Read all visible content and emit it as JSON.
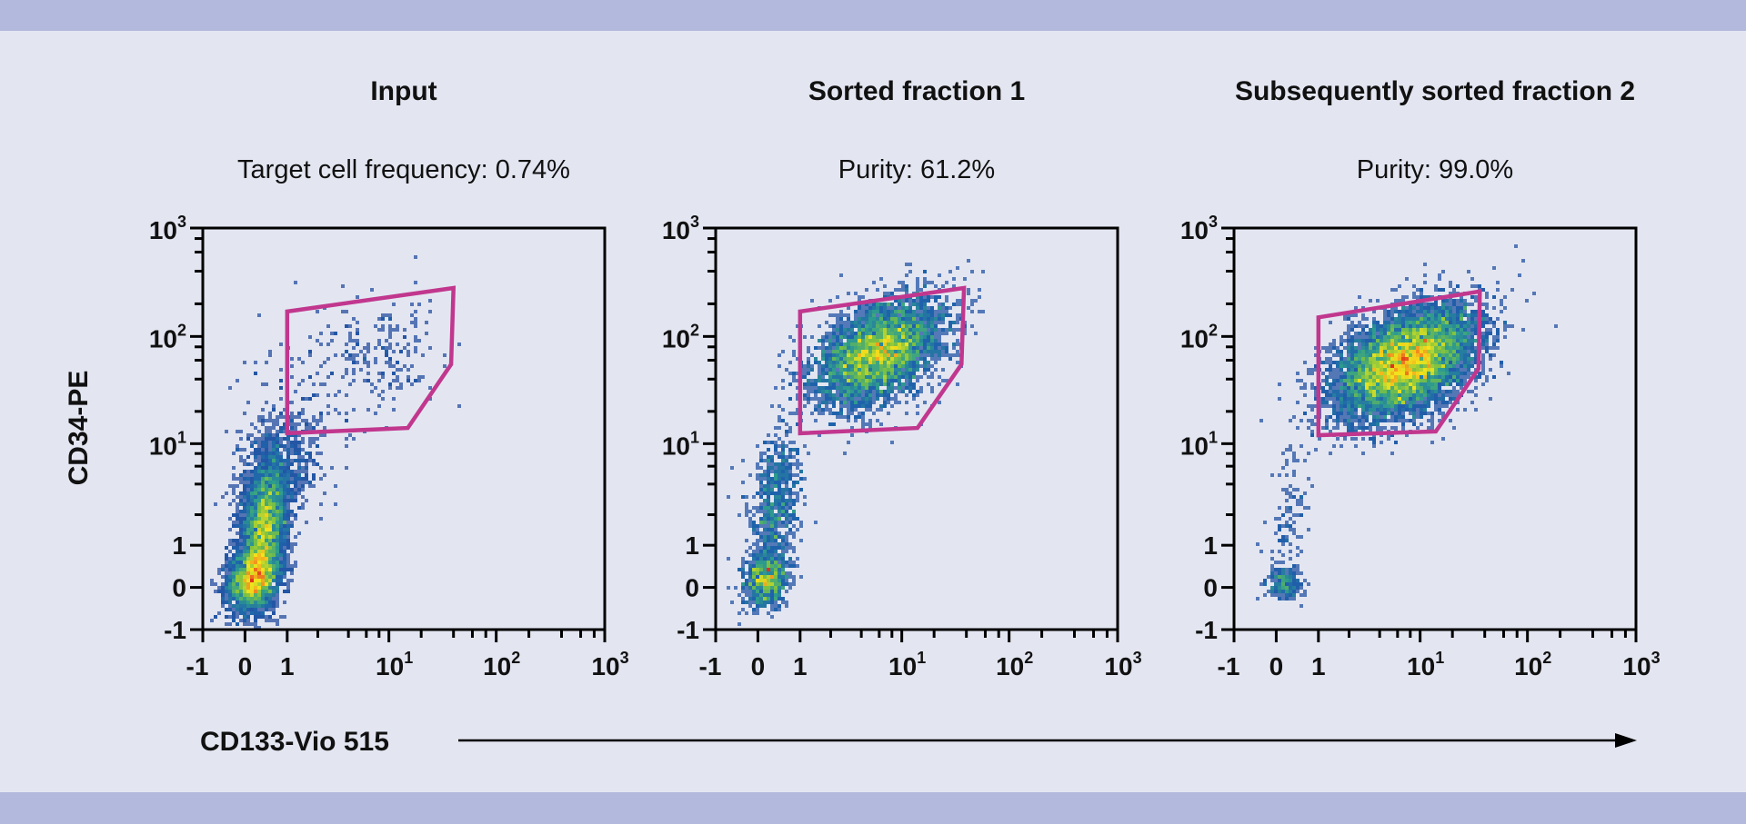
{
  "x_axis_label": "CD133-Vio 515",
  "y_axis_label": "CD34-PE",
  "colors": {
    "background": "#e3e6f1",
    "band": "#b2b9dc",
    "gate": "#c1378e",
    "axis": "#000000",
    "density_scale": [
      "#2a3f97",
      "#1f63ad",
      "#2f9e8c",
      "#7cc142",
      "#f2e51c",
      "#f39a1e",
      "#e0301e"
    ]
  },
  "chart_data": [
    {
      "type": "heatmap",
      "title": "Input",
      "subtitle": "Target cell frequency: 0.74%",
      "xlabel": "CD133-Vio 515",
      "ylabel": "CD34-PE",
      "scale": "biexponential",
      "xlim": [
        -1,
        1000
      ],
      "ylim": [
        -1,
        1000
      ],
      "x_ticks": [
        {
          "text": "-1",
          "sup": ""
        },
        {
          "text": "0",
          "sup": ""
        },
        {
          "text": "1",
          "sup": ""
        },
        {
          "text": "10",
          "sup": "1"
        },
        {
          "text": "10",
          "sup": "2"
        },
        {
          "text": "10",
          "sup": "3"
        }
      ],
      "y_ticks": [
        {
          "text": "-1",
          "sup": ""
        },
        {
          "text": "0",
          "sup": ""
        },
        {
          "text": "1",
          "sup": ""
        },
        {
          "text": "10",
          "sup": "1"
        },
        {
          "text": "10",
          "sup": "2"
        },
        {
          "text": "10",
          "sup": "3"
        }
      ],
      "gate": [
        [
          1,
          170
        ],
        [
          40,
          280
        ],
        [
          38,
          55
        ],
        [
          15,
          14
        ],
        [
          1,
          12.5
        ]
      ],
      "populations": [
        {
          "x": 0.2,
          "y": 0.2,
          "spread_decades": [
            0.12,
            0.15
          ],
          "rho": 0.2,
          "n": 2500
        },
        {
          "x": 0.45,
          "y": 1.5,
          "spread_decades": [
            0.11,
            0.3
          ],
          "rho": 0.3,
          "n": 3200
        },
        {
          "x": 0.8,
          "y": 6,
          "spread_decades": [
            0.2,
            0.3
          ],
          "rho": 0.3,
          "n": 700
        },
        {
          "x": 8,
          "y": 70,
          "spread_decades": [
            0.28,
            0.22
          ],
          "rho": 0.2,
          "n": 160
        },
        {
          "x": 3,
          "y": 30,
          "spread_decades": [
            0.45,
            0.4
          ],
          "rho": 0.3,
          "n": 110
        }
      ]
    },
    {
      "type": "heatmap",
      "title": "Sorted fraction 1",
      "subtitle": "Purity: 61.2%",
      "xlabel": "CD133-Vio 515",
      "ylabel": "CD34-PE",
      "scale": "biexponential",
      "xlim": [
        -1,
        1000
      ],
      "ylim": [
        -1,
        1000
      ],
      "x_ticks": [
        {
          "text": "-1",
          "sup": ""
        },
        {
          "text": "0",
          "sup": ""
        },
        {
          "text": "1",
          "sup": ""
        },
        {
          "text": "10",
          "sup": "1"
        },
        {
          "text": "10",
          "sup": "2"
        },
        {
          "text": "10",
          "sup": "3"
        }
      ],
      "y_ticks": [
        {
          "text": "-1",
          "sup": ""
        },
        {
          "text": "0",
          "sup": ""
        },
        {
          "text": "1",
          "sup": ""
        },
        {
          "text": "10",
          "sup": "1"
        },
        {
          "text": "10",
          "sup": "2"
        },
        {
          "text": "10",
          "sup": "3"
        }
      ],
      "gate": [
        [
          1,
          170
        ],
        [
          38,
          280
        ],
        [
          36,
          55
        ],
        [
          14,
          14
        ],
        [
          1,
          12.5
        ]
      ],
      "populations": [
        {
          "x": 6,
          "y": 70,
          "spread_decades": [
            0.3,
            0.25
          ],
          "rho": 0.45,
          "n": 4200
        },
        {
          "x": 0.2,
          "y": 0.2,
          "spread_decades": [
            0.1,
            0.13
          ],
          "rho": 0.2,
          "n": 800
        },
        {
          "x": 0.4,
          "y": 2.5,
          "spread_decades": [
            0.12,
            0.35
          ],
          "rho": 0.3,
          "n": 700
        }
      ]
    },
    {
      "type": "heatmap",
      "title": "Subsequently sorted fraction 2",
      "subtitle": "Purity: 99.0%",
      "xlabel": "CD133-Vio 515",
      "ylabel": "CD34-PE",
      "scale": "biexponential",
      "xlim": [
        -1,
        1000
      ],
      "ylim": [
        -1,
        1000
      ],
      "x_ticks": [
        {
          "text": "-1",
          "sup": ""
        },
        {
          "text": "0",
          "sup": ""
        },
        {
          "text": "1",
          "sup": ""
        },
        {
          "text": "10",
          "sup": "1"
        },
        {
          "text": "10",
          "sup": "2"
        },
        {
          "text": "10",
          "sup": "3"
        }
      ],
      "y_ticks": [
        {
          "text": "-1",
          "sup": ""
        },
        {
          "text": "0",
          "sup": ""
        },
        {
          "text": "1",
          "sup": ""
        },
        {
          "text": "10",
          "sup": "1"
        },
        {
          "text": "10",
          "sup": "2"
        },
        {
          "text": "10",
          "sup": "3"
        }
      ],
      "gate": [
        [
          1,
          150
        ],
        [
          36,
          260
        ],
        [
          35,
          50
        ],
        [
          14,
          13
        ],
        [
          1,
          12
        ]
      ],
      "populations": [
        {
          "x": 7,
          "y": 55,
          "spread_decades": [
            0.33,
            0.26
          ],
          "rho": 0.45,
          "n": 7500
        },
        {
          "x": 0.2,
          "y": 0.1,
          "spread_decades": [
            0.08,
            0.08
          ],
          "rho": 0.0,
          "n": 220
        },
        {
          "x": 0.3,
          "y": 2,
          "spread_decades": [
            0.1,
            0.3
          ],
          "rho": 0.2,
          "n": 110
        }
      ]
    }
  ]
}
